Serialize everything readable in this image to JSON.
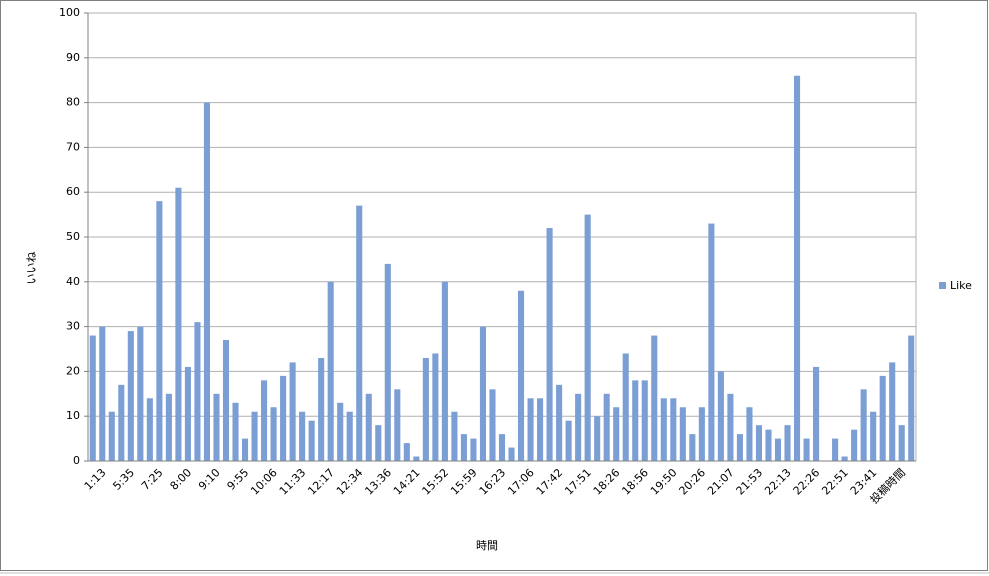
{
  "chart_data": {
    "type": "bar",
    "x_label": "時間",
    "y_label": "いいね",
    "categories": [
      null,
      "1:13",
      null,
      null,
      "5:35",
      null,
      null,
      "7:25",
      null,
      null,
      "8:00",
      null,
      null,
      "9:10",
      null,
      null,
      "9:55",
      null,
      null,
      "10:06",
      null,
      null,
      "11:33",
      null,
      null,
      "12:17",
      null,
      null,
      "12:34",
      null,
      null,
      "13:36",
      null,
      null,
      "14:21",
      null,
      null,
      "15:52",
      null,
      null,
      "15:59",
      null,
      null,
      "16:23",
      null,
      null,
      "17:06",
      null,
      null,
      "17:42",
      null,
      null,
      "17:51",
      null,
      null,
      "18:26",
      null,
      null,
      "18:56",
      null,
      null,
      "19:50",
      null,
      null,
      "20:26",
      null,
      null,
      "21:07",
      null,
      null,
      "21:53",
      null,
      null,
      "22:13",
      null,
      null,
      "22:26",
      null,
      null,
      "22:51",
      null,
      null,
      "23:41",
      null,
      null,
      "投稿時間",
      null
    ],
    "series": [
      {
        "name": "Like",
        "color": "#7b9fd4",
        "values": [
          28,
          30,
          11,
          17,
          29,
          30,
          14,
          58,
          15,
          61,
          21,
          31,
          80,
          15,
          27,
          13,
          5,
          11,
          18,
          12,
          19,
          22,
          11,
          9,
          23,
          40,
          13,
          11,
          57,
          15,
          8,
          44,
          16,
          4,
          1,
          23,
          24,
          40,
          11,
          6,
          5,
          30,
          16,
          6,
          3,
          38,
          14,
          14,
          52,
          17,
          9,
          15,
          55,
          10,
          15,
          12,
          24,
          18,
          18,
          28,
          14,
          14,
          12,
          6,
          12,
          53,
          20,
          15,
          6,
          12,
          8,
          7,
          5,
          8,
          86,
          5,
          21,
          0,
          5,
          1,
          7,
          16,
          11,
          19,
          22,
          8,
          28
        ]
      }
    ],
    "ylim": [
      0,
      100
    ],
    "yticks": [
      0,
      10,
      20,
      30,
      40,
      50,
      60,
      70,
      80,
      90,
      100
    ],
    "grid": true,
    "legend": "right"
  }
}
